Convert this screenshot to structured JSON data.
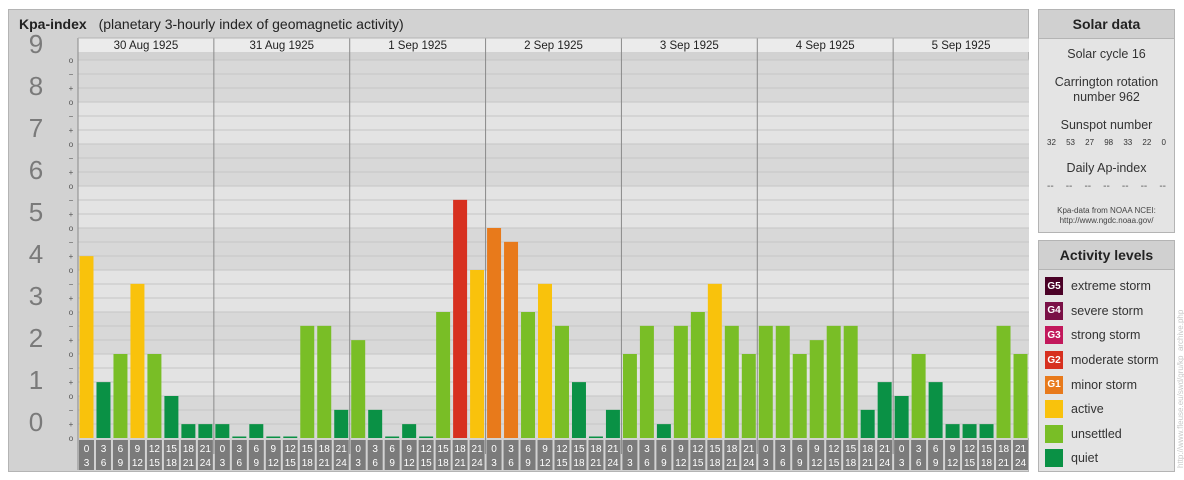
{
  "title": {
    "main": "Kpa-index",
    "sub": "(planetary 3-hourly index of geomagnetic activity)"
  },
  "chart_data": {
    "type": "bar",
    "title": "Kpa-index",
    "subtitle": "(planetary 3-hourly index of geomagnetic activity)",
    "ylim": [
      0,
      9
    ],
    "y_ticks": [
      "0",
      "1",
      "2",
      "3",
      "4",
      "5",
      "6",
      "7",
      "8",
      "9"
    ],
    "sub_ticks": [
      "o",
      "+",
      "−"
    ],
    "days": [
      "30 Aug 1925",
      "31 Aug 1925",
      "1 Sep 1925",
      "2 Sep 1925",
      "3 Sep 1925",
      "4 Sep 1925",
      "5 Sep 1925"
    ],
    "hour_starts": [
      "0",
      "3",
      "6",
      "9",
      "12",
      "15",
      "18",
      "21"
    ],
    "hour_ends": [
      "3",
      "6",
      "9",
      "12",
      "15",
      "18",
      "21",
      "24"
    ],
    "values": [
      [
        4.33,
        1.33,
        2.0,
        3.67,
        2.0,
        1.0,
        0.33,
        0.33
      ],
      [
        0.33,
        0.0,
        0.33,
        0.0,
        0.0,
        2.67,
        2.67,
        0.67
      ],
      [
        2.33,
        0.67,
        0.0,
        0.33,
        0.0,
        3.0,
        5.67,
        4.0
      ],
      [
        5.0,
        4.67,
        3.0,
        3.67,
        2.67,
        1.33,
        0.0,
        0.67
      ],
      [
        2.0,
        2.67,
        0.33,
        2.67,
        3.0,
        3.67,
        2.67,
        2.0
      ],
      [
        2.67,
        2.67,
        2.0,
        2.33,
        2.67,
        2.67,
        0.67,
        1.33
      ],
      [
        1.0,
        2.0,
        1.33,
        0.33,
        0.33,
        0.33,
        2.67,
        2.0
      ]
    ],
    "colors": {
      "quiet": "#0a9145",
      "unsettled": "#79be26",
      "active": "#f9c20c",
      "minor": "#e87a1b",
      "moderate": "#d7301f",
      "strong": "#c2185b",
      "severe": "#7a1046",
      "extreme": "#4a0126"
    }
  },
  "solar": {
    "header": "Solar data",
    "cycle": "Solar cycle 16",
    "carrington_line1": "Carrington rotation",
    "carrington_line2": "number 962",
    "sunspot_label": "Sunspot number",
    "sunspots": [
      "32",
      "53",
      "27",
      "98",
      "33",
      "22",
      "0"
    ],
    "ap_label": "Daily Ap-index",
    "ap_values": [
      "--",
      "--",
      "--",
      "--",
      "--",
      "--",
      "--"
    ],
    "source1": "Kpa-data from NOAA NCEI:",
    "source2": "http://www.ngdc.noaa.gov/"
  },
  "activity": {
    "header": "Activity levels",
    "levels": [
      {
        "code": "G5",
        "label": "extreme storm",
        "color": "#4a0126"
      },
      {
        "code": "G4",
        "label": "severe storm",
        "color": "#7a1046"
      },
      {
        "code": "G3",
        "label": "strong storm",
        "color": "#c2185b"
      },
      {
        "code": "G2",
        "label": "moderate storm",
        "color": "#d7301f"
      },
      {
        "code": "G1",
        "label": "minor storm",
        "color": "#e87a1b"
      },
      {
        "code": "",
        "label": "active",
        "color": "#f9c20c"
      },
      {
        "code": "",
        "label": "unsettled",
        "color": "#79be26"
      },
      {
        "code": "",
        "label": "quiet",
        "color": "#0a9145"
      }
    ]
  },
  "watermark": "http://www.fleuse.eu/swd/gru/kp_archive.php"
}
